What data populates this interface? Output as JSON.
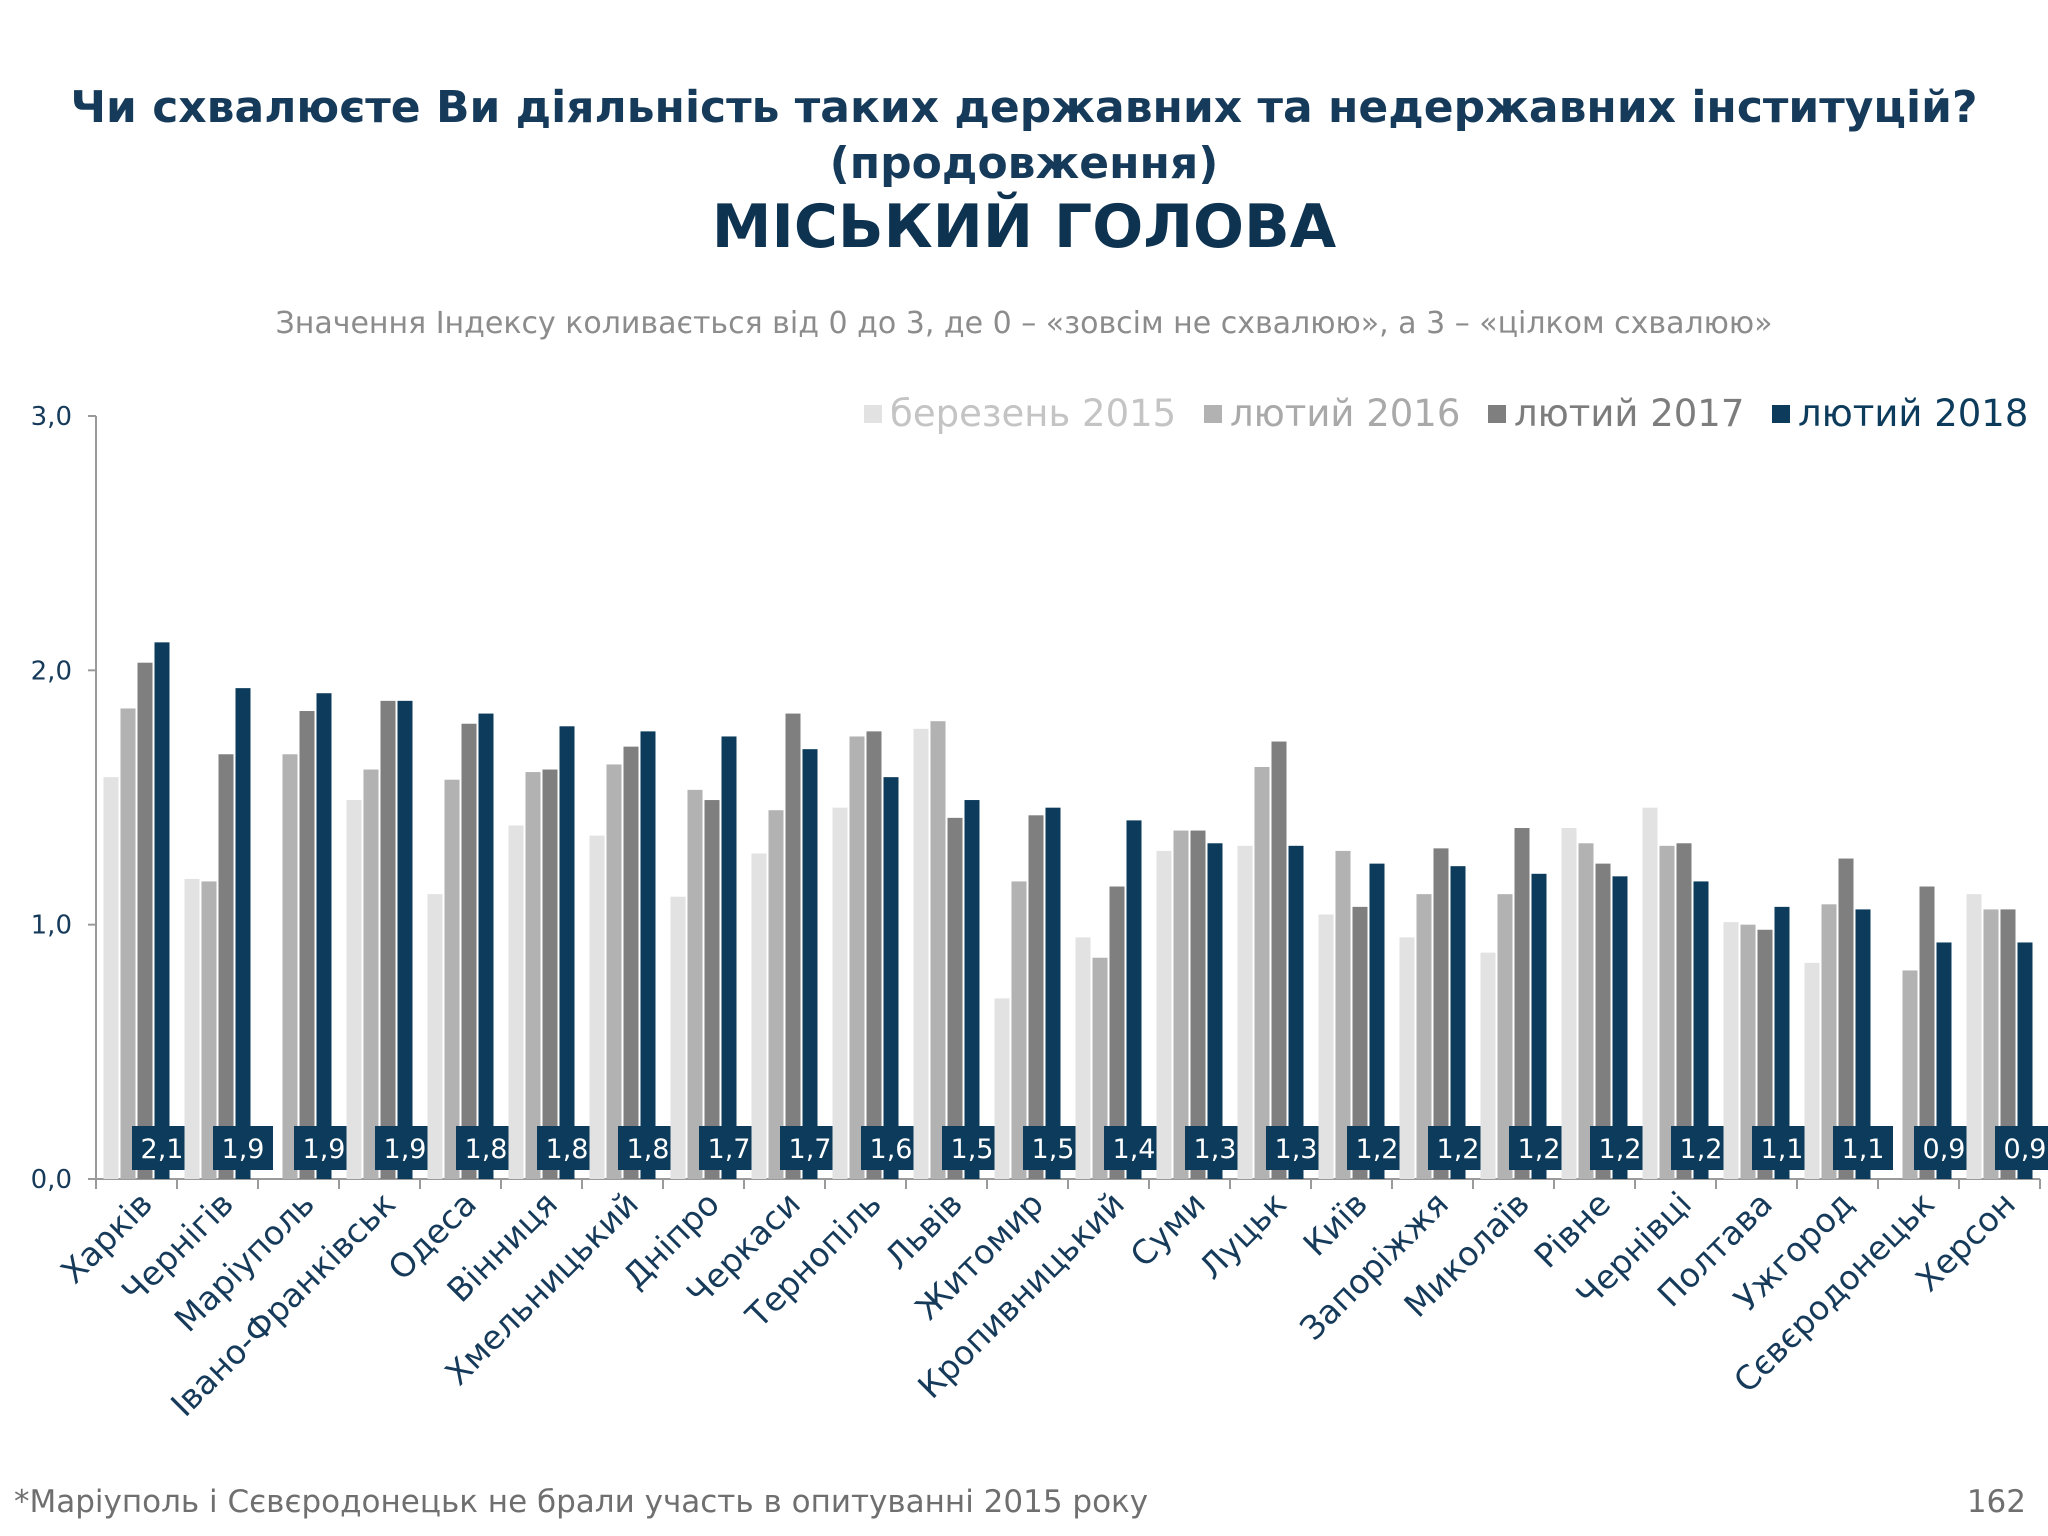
{
  "header": {
    "title_line1": "Чи схвалюєте Ви діяльність таких державних та недержавних інституцій?",
    "title_line2": "(продовження)",
    "title_main": "МІСЬКИЙ ГОЛОВА",
    "subtitle": "Значення Індексу коливається від 0 до 3, де 0 – «зовсім не схвалюю», а 3 – «цілком схвалюю»"
  },
  "footer": {
    "footnote": "*Маріуполь і Сєвєродонецьк не брали участь в опитуванні 2015 року",
    "page_number": "162"
  },
  "chart_data": {
    "type": "bar",
    "categories": [
      "Харків",
      "Чернігів",
      "Маріуполь",
      "Івано-Франківськ",
      "Одеса",
      "Вінниця",
      "Хмельницький",
      "Дніпро",
      "Черкаси",
      "Тернопіль",
      "Львів",
      "Житомир",
      "Кропивницький",
      "Суми",
      "Луцьк",
      "Київ",
      "Запоріжжя",
      "Миколаїв",
      "Рівне",
      "Чернівці",
      "Полтава",
      "Ужгород",
      "Сєвєродонецьк",
      "Херсон"
    ],
    "series": [
      {
        "name": "березень 2015",
        "color": "#e2e2e2",
        "values": [
          1.58,
          1.18,
          null,
          1.49,
          1.12,
          1.39,
          1.35,
          1.11,
          1.28,
          1.46,
          1.77,
          0.71,
          0.95,
          1.29,
          1.31,
          1.04,
          0.95,
          0.89,
          1.38,
          1.46,
          1.01,
          0.85,
          null,
          1.12
        ]
      },
      {
        "name": "лютий 2016",
        "color": "#b2b2b2",
        "values": [
          1.85,
          1.17,
          1.67,
          1.61,
          1.57,
          1.6,
          1.63,
          1.53,
          1.45,
          1.74,
          1.8,
          1.17,
          0.87,
          1.37,
          1.62,
          1.29,
          1.12,
          1.12,
          1.32,
          1.31,
          1.0,
          1.08,
          0.82,
          1.06
        ]
      },
      {
        "name": "лютий 2017",
        "color": "#7f7f7f",
        "values": [
          2.03,
          1.67,
          1.84,
          1.88,
          1.79,
          1.61,
          1.7,
          1.49,
          1.83,
          1.76,
          1.42,
          1.43,
          1.15,
          1.37,
          1.72,
          1.07,
          1.3,
          1.38,
          1.24,
          1.32,
          0.98,
          1.26,
          1.15,
          1.06
        ]
      },
      {
        "name": "лютий 2018",
        "color": "#0c3b5b",
        "values": [
          2.11,
          1.93,
          1.91,
          1.88,
          1.83,
          1.78,
          1.76,
          1.74,
          1.69,
          1.58,
          1.49,
          1.46,
          1.41,
          1.32,
          1.31,
          1.24,
          1.23,
          1.2,
          1.19,
          1.17,
          1.07,
          1.06,
          0.93,
          0.93
        ]
      }
    ],
    "data_labels": [
      "2,1",
      "1,9",
      "1,9",
      "1,9",
      "1,8",
      "1,8",
      "1,8",
      "1,7",
      "1,7",
      "1,6",
      "1,5",
      "1,5",
      "1,4",
      "1,3",
      "1,3",
      "1,2",
      "1,2",
      "1,2",
      "1,2",
      "1,2",
      "1,1",
      "1,1",
      "0,9",
      "0,9"
    ],
    "ylim": [
      0,
      3
    ],
    "yticks": [
      0,
      1,
      2,
      3
    ],
    "ytick_labels": [
      "0,0",
      "1,0",
      "2,0",
      "3,0"
    ],
    "grid": false,
    "legend_position": "top-right"
  }
}
